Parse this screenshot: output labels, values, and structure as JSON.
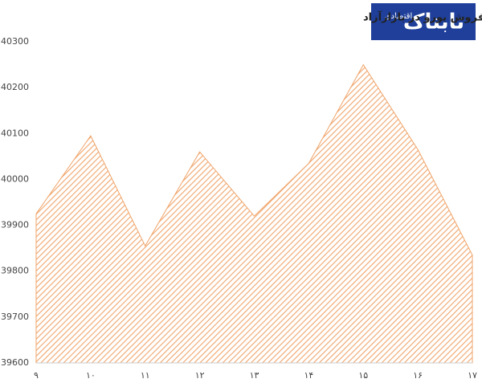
{
  "logo": {
    "name": "تابناک",
    "sub": "اقتصادی"
  },
  "chart_data": {
    "type": "area",
    "title": "میانگین ساعت به ساعت قیمت فروش یورو در بازارآزاد",
    "categories": [
      "۹",
      "۱۰",
      "۱۱",
      "۱۲",
      "۱۳",
      "۱۴",
      "۱۵",
      "۱۶",
      "۱۷"
    ],
    "values": [
      39925,
      40095,
      39855,
      40060,
      39920,
      40035,
      40250,
      40065,
      39835
    ],
    "color": "#f0a46a",
    "ylim": [
      39600,
      40300
    ],
    "yticks": [
      39600,
      39700,
      39800,
      39900,
      40000,
      40100,
      40200,
      40300
    ],
    "grid": false
  }
}
